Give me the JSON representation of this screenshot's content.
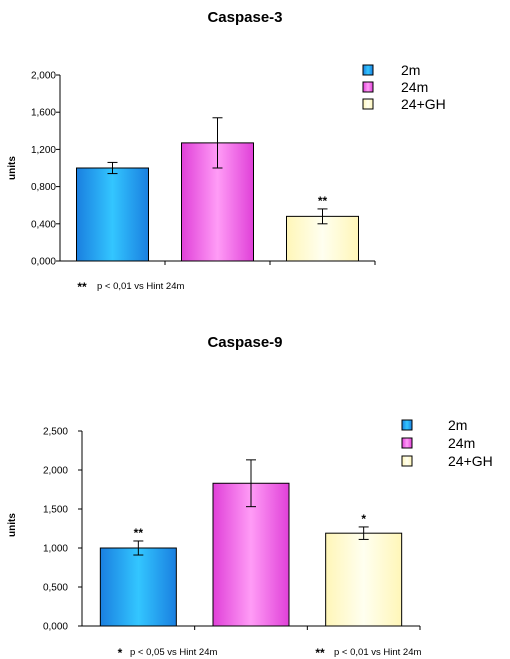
{
  "chart_data": [
    {
      "type": "bar",
      "title": "Caspase-3",
      "ylabel": "units",
      "xlabel": "",
      "categories": [
        "2m",
        "24m",
        "24+GH"
      ],
      "values": [
        1.0,
        1.27,
        0.48
      ],
      "errors": [
        0.06,
        0.27,
        0.08
      ],
      "significance": [
        "",
        "",
        "**"
      ],
      "ylim": [
        0,
        2.0
      ],
      "yticks": [
        0,
        0.4,
        0.8,
        1.2,
        1.6,
        2.0
      ],
      "ytick_labels": [
        "0,000",
        "0,400",
        "0,800",
        "1,200",
        "1,600",
        "2,000"
      ],
      "grid": false,
      "legend": [
        "2m",
        "24m",
        "24+GH"
      ],
      "legend_placement": "top-right",
      "footnotes": [
        {
          "marker": "**",
          "text": "p < 0,01 vs Hint 24m"
        }
      ]
    },
    {
      "type": "bar",
      "title": "Caspase-9",
      "ylabel": "units",
      "xlabel": "",
      "categories": [
        "2m",
        "24m",
        "24+GH"
      ],
      "values": [
        1.0,
        1.83,
        1.19
      ],
      "errors": [
        0.09,
        0.3,
        0.08
      ],
      "significance": [
        "**",
        "",
        "*"
      ],
      "ylim": [
        0,
        2.5
      ],
      "yticks": [
        0,
        0.5,
        1.0,
        1.5,
        2.0,
        2.5
      ],
      "ytick_labels": [
        "0,000",
        "0,500",
        "1,000",
        "1,500",
        "2,000",
        "2,500"
      ],
      "grid": false,
      "legend": [
        "2m",
        "24m",
        "24+GH"
      ],
      "legend_placement": "top-right",
      "footnotes": [
        {
          "marker": "*",
          "text": "p < 0,05 vs Hint 24m"
        },
        {
          "marker": "**",
          "text": "p < 0,01 vs Hint 24m"
        }
      ]
    }
  ],
  "colors": {
    "2m": "#1a9cf0",
    "24m": "#ee5fe2",
    "24+GH": "#fffbd0"
  }
}
